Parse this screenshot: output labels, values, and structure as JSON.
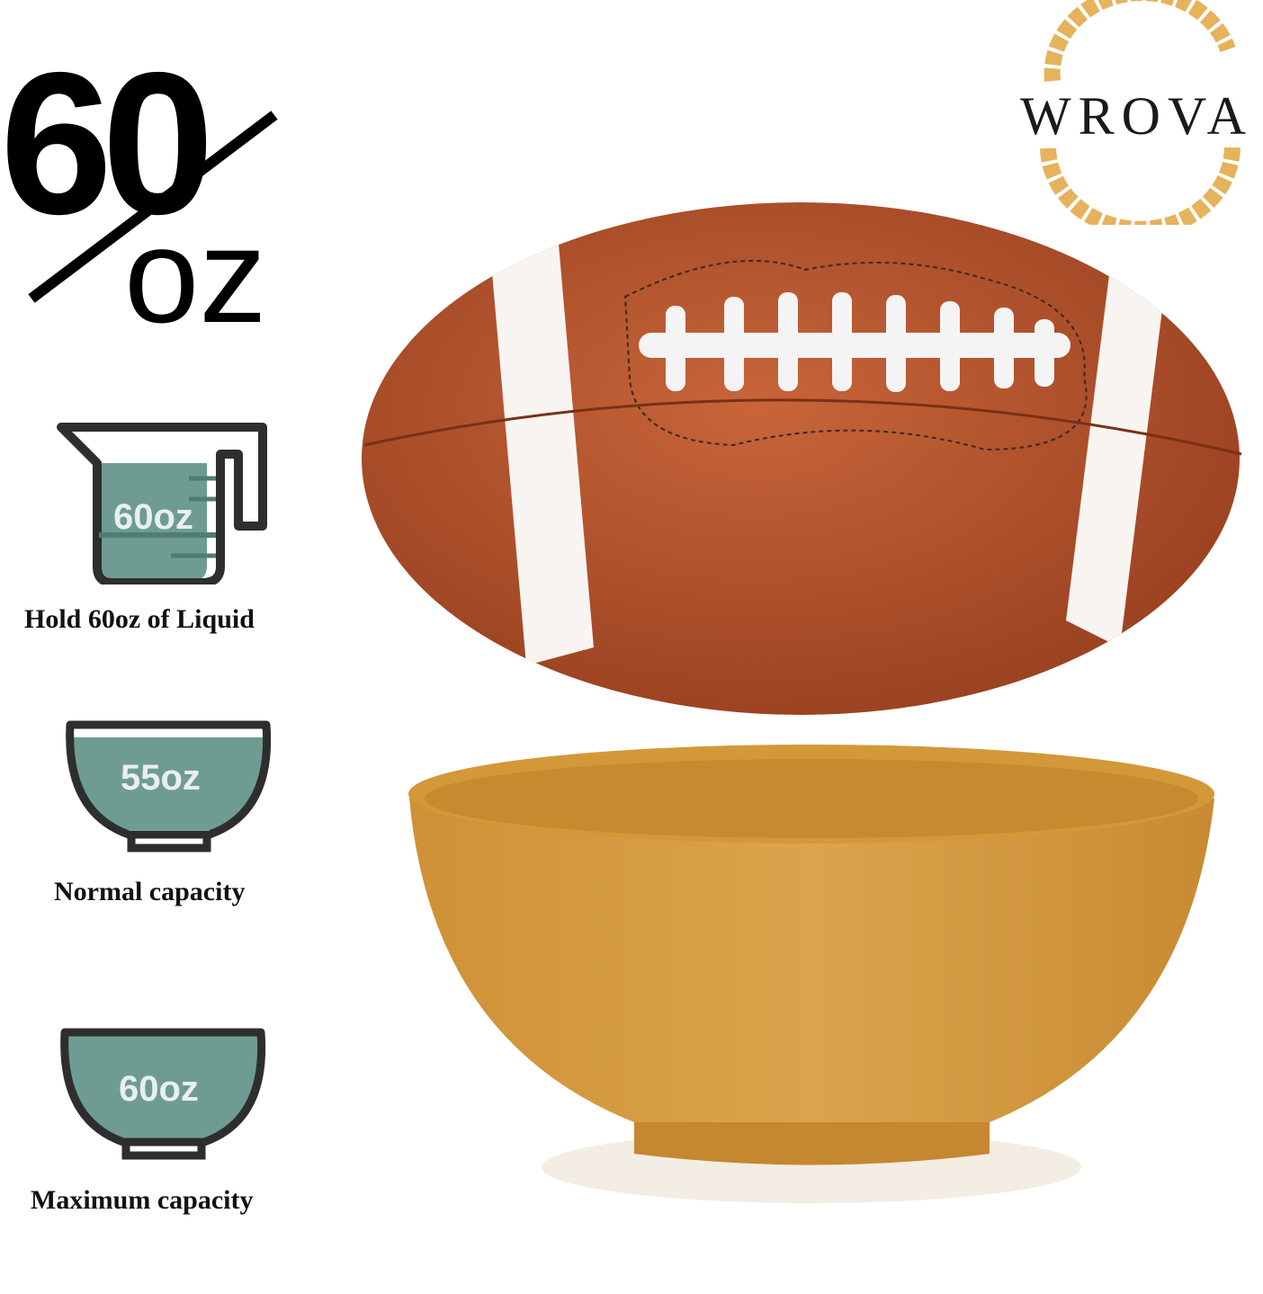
{
  "headline": {
    "number": "60",
    "unit": "oz"
  },
  "brand": {
    "name": "WROVA"
  },
  "features": [
    {
      "icon": "measuring-jug-icon",
      "value": "60oz",
      "caption": "Hold 60oz of Liquid"
    },
    {
      "icon": "bowl-icon",
      "value": "55oz",
      "caption": "Normal capacity",
      "fill_level": "partial"
    },
    {
      "icon": "bowl-icon",
      "value": "60oz",
      "caption": "Maximum capacity",
      "fill_level": "full"
    }
  ],
  "colors": {
    "icon_fill": "#6f9c92",
    "icon_outline": "#2e2e2e",
    "bowl": "#d49a3c",
    "football": "#b5532b",
    "wheat": "#e6b25c"
  }
}
